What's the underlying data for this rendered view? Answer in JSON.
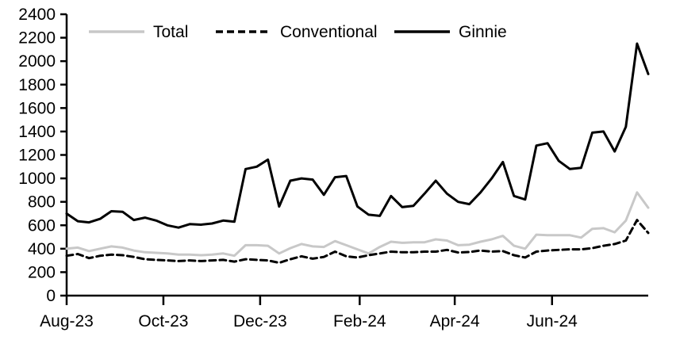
{
  "chart_data": {
    "type": "line",
    "title": "",
    "x_unit": "weekly observations, Aug 2023 through mid Aug 2024",
    "x_weeks_span": 52,
    "colors": {
      "total_line": "#c8c8c8",
      "black_line": "#000000",
      "axis": "#000000",
      "background": "#ffffff"
    },
    "legend": {
      "position": "top",
      "entries": [
        "Total",
        "Conventional",
        "Ginnie"
      ]
    },
    "y_axis": {
      "min": 0,
      "max": 2400,
      "step": 200,
      "tick_labels": [
        "0",
        "200",
        "400",
        "600",
        "800",
        "1000",
        "1200",
        "1400",
        "1600",
        "1800",
        "2000",
        "2200",
        "2400"
      ]
    },
    "x_axis": {
      "tick_labels": [
        "Aug-23",
        "Oct-23",
        "Dec-23",
        "Feb-24",
        "Apr-24",
        "Jun-24"
      ],
      "tick_week_positions": [
        0,
        8.65,
        17.3,
        26.2,
        34.7,
        43.4
      ]
    },
    "series": [
      {
        "name": "Total",
        "style": "solid",
        "color": "#c8c8c8",
        "values": [
          400,
          410,
          380,
          400,
          420,
          410,
          385,
          370,
          365,
          360,
          350,
          350,
          345,
          350,
          360,
          340,
          430,
          430,
          425,
          360,
          405,
          440,
          420,
          415,
          465,
          430,
          395,
          360,
          415,
          460,
          450,
          455,
          455,
          480,
          470,
          430,
          435,
          460,
          480,
          510,
          425,
          400,
          520,
          515,
          515,
          515,
          495,
          570,
          575,
          540,
          640,
          880,
          750
        ]
      },
      {
        "name": "Conventional",
        "style": "dashed",
        "color": "#000000",
        "values": [
          340,
          355,
          320,
          340,
          350,
          345,
          330,
          310,
          305,
          300,
          295,
          300,
          295,
          300,
          305,
          290,
          310,
          305,
          300,
          280,
          310,
          335,
          315,
          330,
          375,
          335,
          325,
          345,
          360,
          375,
          370,
          370,
          375,
          375,
          390,
          368,
          372,
          385,
          375,
          380,
          345,
          325,
          375,
          385,
          390,
          395,
          395,
          405,
          425,
          440,
          470,
          645,
          535
        ]
      },
      {
        "name": "Ginnie",
        "style": "solid",
        "color": "#000000",
        "values": [
          700,
          635,
          625,
          655,
          720,
          715,
          645,
          665,
          640,
          600,
          580,
          610,
          605,
          615,
          640,
          630,
          1080,
          1100,
          1160,
          760,
          980,
          1000,
          990,
          860,
          1010,
          1020,
          760,
          690,
          680,
          850,
          755,
          765,
          870,
          980,
          870,
          800,
          780,
          880,
          1000,
          1140,
          850,
          820,
          1280,
          1300,
          1150,
          1080,
          1090,
          1390,
          1400,
          1230,
          1440,
          2150,
          1890
        ]
      }
    ]
  }
}
